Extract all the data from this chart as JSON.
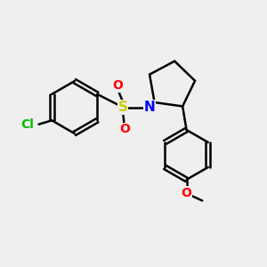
{
  "background_color": "#efefef",
  "bond_color": "#000000",
  "bond_width": 1.8,
  "cl_color": "#00bb00",
  "n_color": "#0000ff",
  "o_color": "#ff0000",
  "s_color": "#cccc00",
  "font_size": 10,
  "xlim": [
    0,
    10
  ],
  "ylim": [
    0,
    10
  ]
}
